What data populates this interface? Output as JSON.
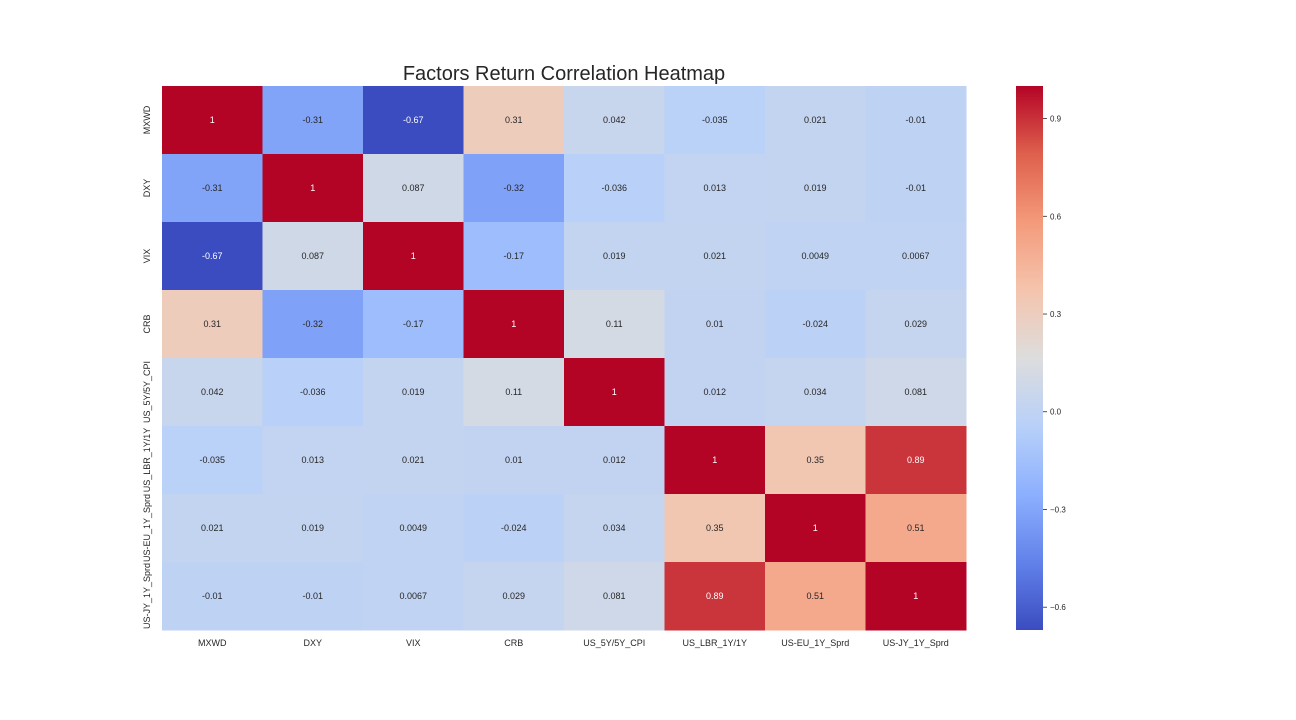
{
  "chart_data": {
    "type": "heatmap",
    "title": "Factors Return Correlation Heatmap",
    "xlabel": "",
    "ylabel": "",
    "x_categories": [
      "MXWD",
      "DXY",
      "VIX",
      "CRB",
      "US_5Y/5Y_CPI",
      "US_LBR_1Y/1Y",
      "US-EU_1Y_Sprd",
      "US-JY_1Y_Sprd"
    ],
    "y_categories": [
      "MXWD",
      "DXY",
      "VIX",
      "CRB",
      "US_5Y/5Y_CPI",
      "US_LBR_1Y/1Y",
      "US-EU_1Y_Sprd",
      "US-JY_1Y_Sprd"
    ],
    "values": [
      [
        1,
        -0.31,
        -0.67,
        0.31,
        0.042,
        -0.035,
        0.021,
        -0.01
      ],
      [
        -0.31,
        1,
        0.087,
        -0.32,
        -0.036,
        0.013,
        0.019,
        -0.01
      ],
      [
        -0.67,
        0.087,
        1,
        -0.17,
        0.019,
        0.021,
        0.0049,
        0.0067
      ],
      [
        0.31,
        -0.32,
        -0.17,
        1,
        0.11,
        0.01,
        -0.024,
        0.029
      ],
      [
        0.042,
        -0.036,
        0.019,
        0.11,
        1,
        0.012,
        0.034,
        0.081
      ],
      [
        -0.035,
        0.013,
        0.021,
        0.01,
        0.012,
        1,
        0.35,
        0.89
      ],
      [
        0.021,
        0.019,
        0.0049,
        -0.024,
        0.034,
        0.35,
        1,
        0.51
      ],
      [
        -0.01,
        -0.01,
        0.0067,
        0.029,
        0.081,
        0.89,
        0.51,
        1
      ]
    ],
    "cell_labels": [
      [
        "1",
        "-0.31",
        "-0.67",
        "0.31",
        "0.042",
        "-0.035",
        "0.021",
        "-0.01"
      ],
      [
        "-0.31",
        "1",
        "0.087",
        "-0.32",
        "-0.036",
        "0.013",
        "0.019",
        "-0.01"
      ],
      [
        "-0.67",
        "0.087",
        "1",
        "-0.17",
        "0.019",
        "0.021",
        "0.0049",
        "0.0067"
      ],
      [
        "0.31",
        "-0.32",
        "-0.17",
        "1",
        "0.11",
        "0.01",
        "-0.024",
        "0.029"
      ],
      [
        "0.042",
        "-0.036",
        "0.019",
        "0.11",
        "1",
        "0.012",
        "0.034",
        "0.081"
      ],
      [
        "-0.035",
        "0.013",
        "0.021",
        "0.01",
        "0.012",
        "1",
        "0.35",
        "0.89"
      ],
      [
        "0.021",
        "0.019",
        "0.0049",
        "-0.024",
        "0.034",
        "0.35",
        "1",
        "0.51"
      ],
      [
        "-0.01",
        "-0.01",
        "0.0067",
        "0.029",
        "0.081",
        "0.89",
        "0.51",
        "1"
      ]
    ],
    "colormap": "coolwarm",
    "vmin": -0.67,
    "vmax": 1,
    "colorbar": {
      "ticks": [
        0.9,
        0.6,
        0.3,
        0.0,
        -0.3,
        -0.6
      ],
      "tick_labels": [
        "0.9",
        "0.6",
        "0.3",
        "0.0",
        "−0.3",
        "−0.6"
      ],
      "placement": "right"
    },
    "grid": false
  }
}
